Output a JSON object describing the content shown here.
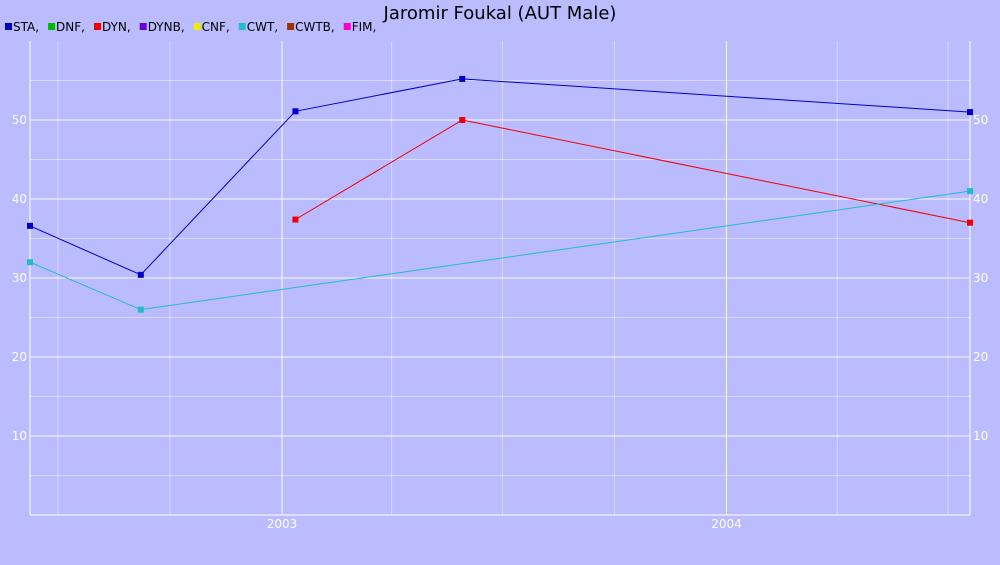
{
  "chart_data": {
    "type": "line",
    "title": "Jaromir Foukal (AUT Male)",
    "legend_position": "top-left",
    "legend": [
      {
        "label": "STA,",
        "color": "#0000cc"
      },
      {
        "label": "DNF,",
        "color": "#00bb00"
      },
      {
        "label": "DYN,",
        "color": "#ee0000"
      },
      {
        "label": "DYNB,",
        "color": "#6600dd"
      },
      {
        "label": "CNF,",
        "color": "#eeee00"
      },
      {
        "label": "CWT,",
        "color": "#22bbcc"
      },
      {
        "label": "CWTB,",
        "color": "#993300"
      },
      {
        "label": "FIM,",
        "color": "#ff00cc"
      }
    ],
    "xlim": [
      "2002-06-08",
      "2004-07-19"
    ],
    "ylim": [
      0,
      60
    ],
    "x_ticks": [
      "2003",
      "2004"
    ],
    "y_ticks": [
      10,
      20,
      30,
      40,
      50
    ],
    "grid": true,
    "series": [
      {
        "name": "STA",
        "color": "#0000cc",
        "points": [
          {
            "x": "2002-06-08",
            "y": 36.6
          },
          {
            "x": "2002-09-07",
            "y": 30.4
          },
          {
            "x": "2003-01-12",
            "y": 51.1
          },
          {
            "x": "2003-05-29",
            "y": 55.2
          },
          {
            "x": "2004-07-19",
            "y": 51.0
          }
        ]
      },
      {
        "name": "DYN",
        "color": "#ee0000",
        "points": [
          {
            "x": "2003-01-12",
            "y": 37.4
          },
          {
            "x": "2003-05-29",
            "y": 50.0
          },
          {
            "x": "2004-07-19",
            "y": 37.0
          }
        ]
      },
      {
        "name": "CWT",
        "color": "#22bbcc",
        "points": [
          {
            "x": "2002-06-08",
            "y": 32.0
          },
          {
            "x": "2002-09-07",
            "y": 26.0
          },
          {
            "x": "2004-07-19",
            "y": 41.0
          }
        ]
      }
    ]
  }
}
